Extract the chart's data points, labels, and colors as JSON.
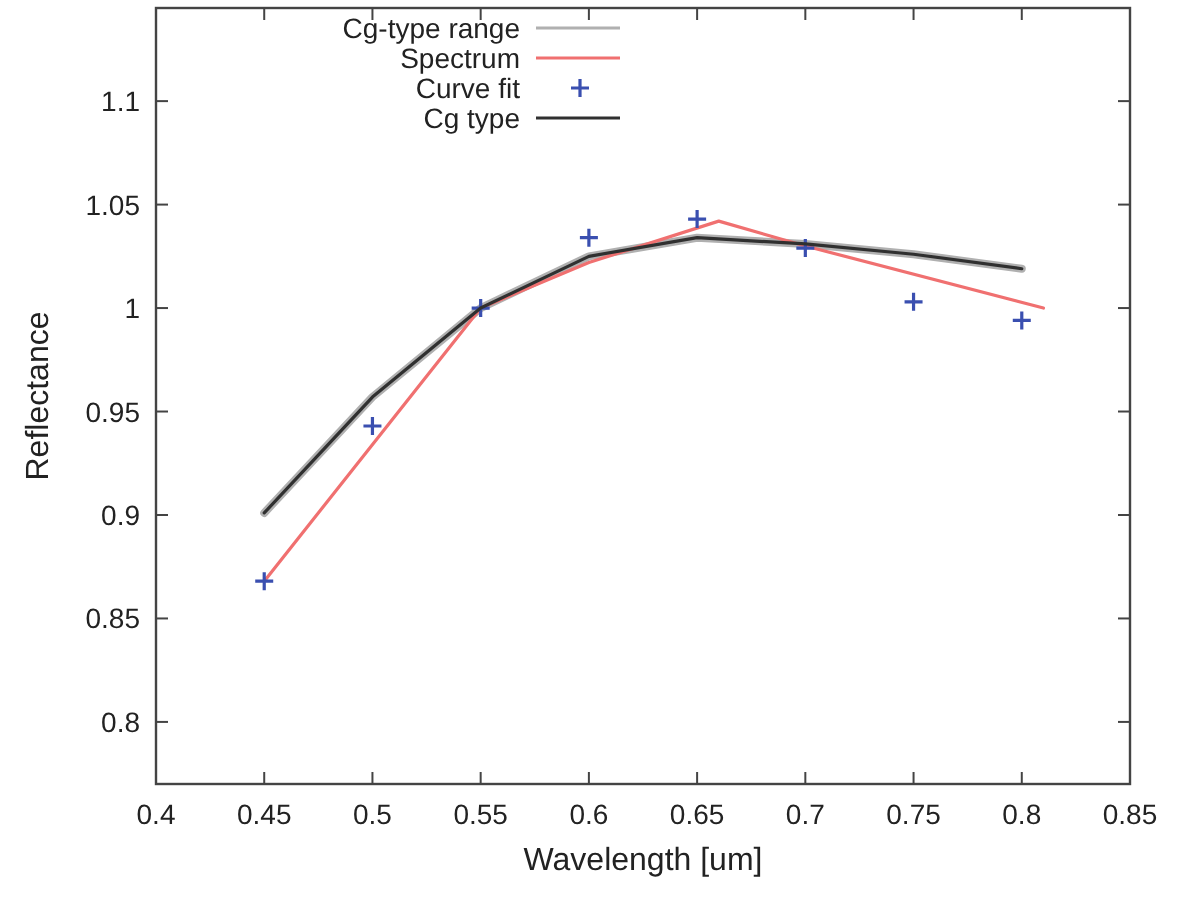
{
  "chart_data": {
    "type": "line",
    "xlabel": "Wavelength [um]",
    "ylabel": "Reflectance",
    "xlim": [
      0.4,
      0.85
    ],
    "xticks": [
      0.4,
      0.45,
      0.5,
      0.55,
      0.6,
      0.65,
      0.7,
      0.75,
      0.8,
      0.85
    ],
    "ylim": [
      0.77,
      1.145
    ],
    "yticks": [
      0.8,
      0.85,
      0.9,
      0.95,
      1,
      1.05,
      1.1
    ],
    "grid": false,
    "legend": "top left",
    "series": [
      {
        "name": "Cg-type range",
        "color": "#b0b0b0",
        "x": [
          0.45,
          0.5,
          0.55,
          0.6,
          0.65,
          0.7,
          0.75,
          0.8
        ],
        "values": [
          0.901,
          0.957,
          1.0,
          1.025,
          1.034,
          1.031,
          1.026,
          1.019
        ]
      },
      {
        "name": "Spectrum",
        "color": "#f07070",
        "x": [
          0.45,
          0.55,
          0.6,
          0.66,
          0.7,
          0.81
        ],
        "values": [
          0.868,
          1.0,
          1.022,
          1.042,
          1.03,
          1.0
        ]
      },
      {
        "name": "Curve fit",
        "type": "scatter",
        "marker": "cross",
        "color": "#3a4fb0",
        "x": [
          0.45,
          0.5,
          0.55,
          0.6,
          0.65,
          0.7,
          0.75,
          0.8
        ],
        "values": [
          0.868,
          0.943,
          1.0,
          1.034,
          1.043,
          1.029,
          1.003,
          0.994
        ]
      },
      {
        "name": "Cg type",
        "color": "#303030",
        "x": [
          0.45,
          0.5,
          0.55,
          0.6,
          0.65,
          0.7,
          0.75,
          0.8
        ],
        "values": [
          0.901,
          0.957,
          1.0,
          1.025,
          1.034,
          1.031,
          1.026,
          1.019
        ]
      }
    ]
  }
}
